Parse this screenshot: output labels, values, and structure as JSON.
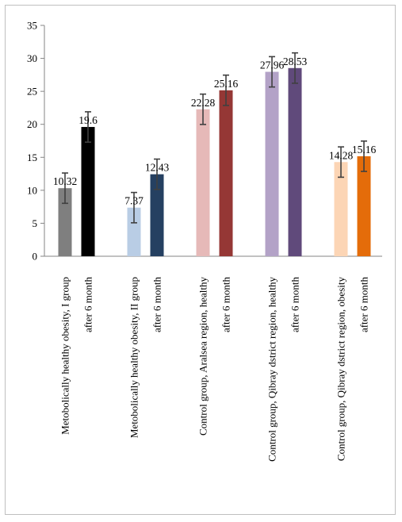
{
  "chart_data": {
    "type": "bar",
    "title": "",
    "xlabel": "",
    "ylabel": "",
    "ylim": [
      0,
      35
    ],
    "yticks": [
      0,
      5,
      10,
      15,
      20,
      25,
      30,
      35
    ],
    "grid": false,
    "legend": "none",
    "categories": [
      "Metobolically healthy obesity, I group",
      "after 6 month",
      "Metobolically healthy obesity, II group",
      "after 6 month",
      "Control group, Aralsea region, healthy",
      "after 6 month",
      "Control group, Qibray dstrict region, healthy",
      "after 6 month",
      "Control group, Qibray dstrict region, obesity",
      "after 6 month"
    ],
    "values": [
      10.32,
      19.6,
      7.37,
      12.43,
      22.28,
      25.16,
      27.96,
      28.53,
      14.28,
      15.16
    ],
    "value_labels": [
      "10.32",
      "19.6",
      "7.37",
      "12.43",
      "22.28",
      "25.16",
      "27.96",
      "28.53",
      "14.28",
      "15.16"
    ],
    "error": [
      2.3,
      2.3,
      2.3,
      2.3,
      2.3,
      2.3,
      2.3,
      2.3,
      2.3,
      2.3
    ],
    "colors": [
      "#7f7f7f",
      "#000000",
      "#b9cde5",
      "#254061",
      "#e6b9b8",
      "#953735",
      "#b3a2c7",
      "#604a7b",
      "#fcd5b5",
      "#e46c0a"
    ]
  }
}
